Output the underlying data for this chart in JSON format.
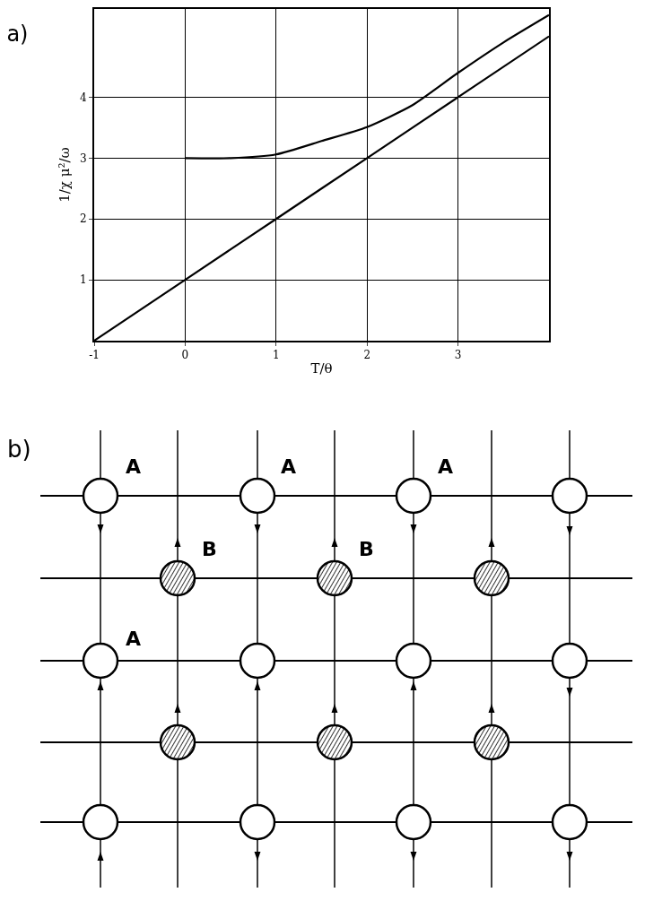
{
  "chart_data": [
    {
      "type": "line",
      "title": "a)",
      "xlabel": "T/θ",
      "ylabel": "1/χ μ²/ω",
      "xlim": [
        -1,
        4
      ],
      "ylim": [
        0,
        5.45
      ],
      "xticks": [
        -1,
        0,
        1,
        2,
        3
      ],
      "yticks": [
        1,
        2,
        3,
        4
      ],
      "grid": true,
      "marker": "none",
      "line_style": "solid",
      "series": [
        {
          "color": "#000000",
          "x": [
            -1,
            0,
            1,
            2,
            3,
            4
          ],
          "values": [
            0,
            1,
            2,
            3,
            4,
            5
          ]
        },
        {
          "color": "#000000",
          "x": [
            0,
            0.5,
            1,
            1.5,
            2,
            2.5,
            3,
            3.5,
            4
          ],
          "values": [
            3,
            3,
            3.06,
            3.28,
            3.51,
            3.87,
            4.4,
            4.9,
            5.35
          ]
        }
      ]
    },
    {
      "type": "other",
      "title": "b)",
      "annotations": [
        "A",
        "A",
        "A",
        "A",
        "B",
        "B"
      ]
    }
  ]
}
